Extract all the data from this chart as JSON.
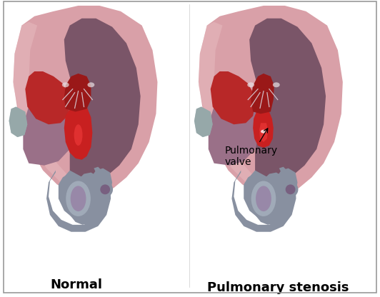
{
  "title_left": "Normal",
  "title_right": "Pulmonary stenosis",
  "annotation_label": "Pulmonary\nvalve",
  "bg_color": "#ffffff",
  "heart_pink": "#d9a0a8",
  "heart_pink_light": "#e8bcc0",
  "heart_pink_outer": "#c89098",
  "dark_purple": "#7a5568",
  "dark_mauve": "#6b4558",
  "medium_purple": "#9a7088",
  "gray_vessel": "#8890a0",
  "gray_vessel_light": "#a0aab8",
  "gray_vessel_dark": "#6878888",
  "red_blood": "#c82020",
  "red_blood_bright": "#e03030",
  "red_blood_dark": "#9a1818",
  "red_lower": "#b82828",
  "aorta_purple": "#9888a8",
  "aorta_dark": "#786080",
  "white_tissue": "#e8e0e4",
  "chordae_color": "#d8ccd4",
  "label_fontsize": 13,
  "annot_fontsize": 10,
  "title_fontweight": "bold",
  "border_color": "#999999"
}
